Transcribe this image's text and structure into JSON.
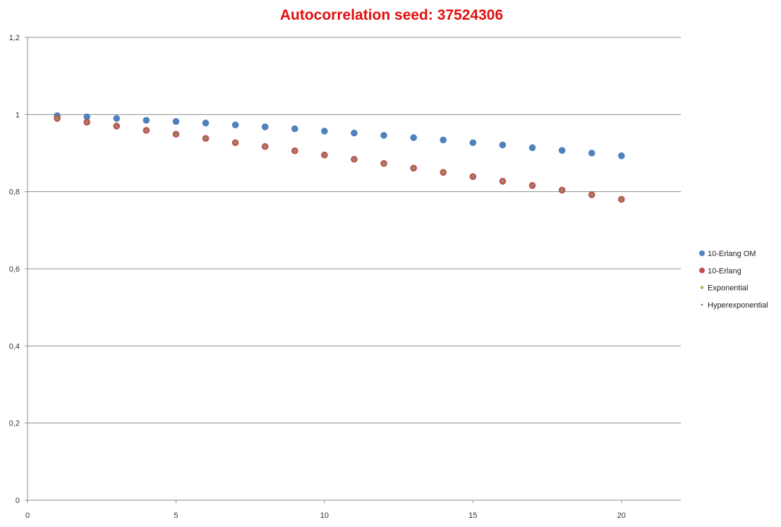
{
  "chart_data": {
    "type": "scatter",
    "title": "Autocorrelation seed: 37524306",
    "title_color": "#e0100f",
    "xlabel": "",
    "ylabel": "",
    "xlim": [
      0,
      22
    ],
    "ylim": [
      0,
      1.2
    ],
    "x_ticks": [
      0,
      5,
      10,
      15,
      20
    ],
    "x_tick_labels": [
      "0",
      "5",
      "10",
      "15",
      "20"
    ],
    "y_ticks": [
      0,
      0.2,
      0.4,
      0.6,
      0.8,
      1,
      1.2
    ],
    "y_tick_labels": [
      "0",
      "0,2",
      "0,4",
      "0,6",
      "0,8",
      "1",
      "1,2"
    ],
    "grid": "horizontal",
    "legend_position": "right",
    "x": [
      1,
      2,
      3,
      4,
      5,
      6,
      7,
      8,
      9,
      10,
      11,
      12,
      13,
      14,
      15,
      16,
      17,
      18,
      19,
      20
    ],
    "series": [
      {
        "name": "10-Erlang OM",
        "color": "#4f81bd",
        "marker_size": "large",
        "values": [
          0.997,
          0.994,
          0.99,
          0.985,
          0.982,
          0.978,
          0.973,
          0.968,
          0.963,
          0.957,
          0.952,
          0.946,
          0.94,
          0.934,
          0.927,
          0.921,
          0.914,
          0.907,
          0.9,
          0.893
        ]
      },
      {
        "name": "10-Erlang",
        "color": "#c0504d",
        "marker_size": "large",
        "values": [
          0.99,
          0.98,
          0.97,
          0.959,
          0.949,
          0.938,
          0.927,
          0.917,
          0.906,
          0.895,
          0.884,
          0.873,
          0.861,
          0.85,
          0.839,
          0.827,
          0.816,
          0.804,
          0.792,
          0.78
        ]
      },
      {
        "name": "Exponential",
        "color": "#9bbb59",
        "marker_size": "small",
        "values": [
          0.99,
          0.98,
          0.97,
          0.959,
          0.949,
          0.938,
          0.927,
          0.917,
          0.906,
          0.895,
          0.884,
          0.873,
          0.861,
          0.85,
          0.839,
          0.827,
          0.816,
          0.804,
          0.792,
          0.78
        ]
      },
      {
        "name": "Hyperexponential",
        "color": "#8064a2",
        "marker_size": "tiny",
        "values": [
          0.99,
          0.98,
          0.97,
          0.959,
          0.949,
          0.938,
          0.927,
          0.917,
          0.906,
          0.895,
          0.884,
          0.873,
          0.861,
          0.85,
          0.839,
          0.827,
          0.816,
          0.804,
          0.792,
          0.78
        ]
      }
    ]
  }
}
